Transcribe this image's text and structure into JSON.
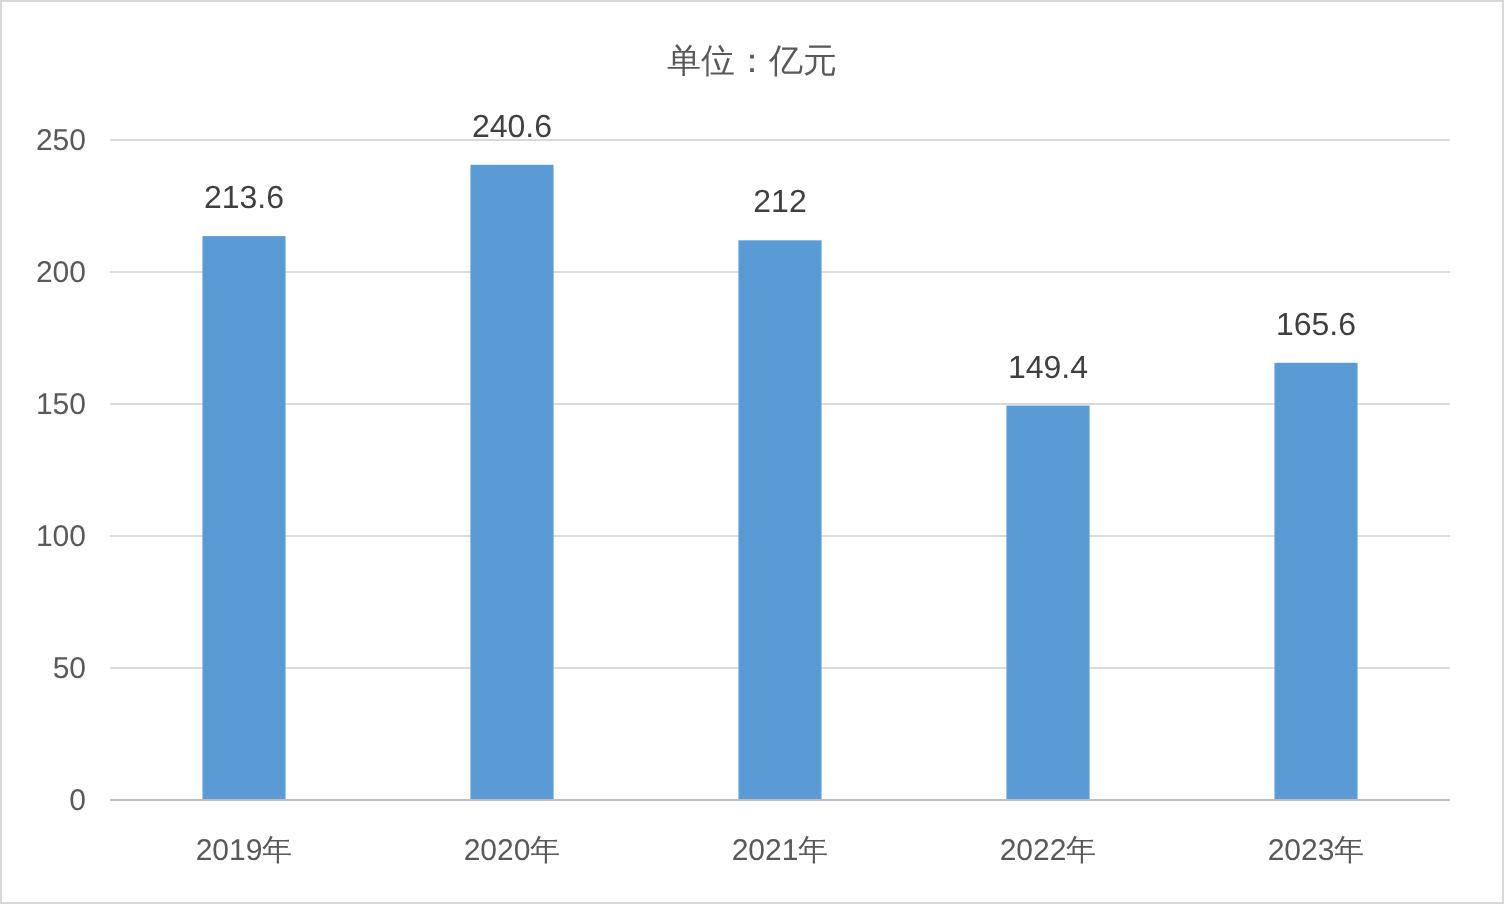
{
  "chart_data": {
    "type": "bar",
    "title": "单位：亿元",
    "categories": [
      "2019年",
      "2020年",
      "2021年",
      "2022年",
      "2023年"
    ],
    "values": [
      213.6,
      240.6,
      212,
      149.4,
      165.6
    ],
    "color": "#5b9bd5",
    "ylim": [
      0,
      250
    ],
    "yticks": [
      0,
      50,
      100,
      150,
      200,
      250
    ],
    "grid": "y",
    "data_labels": true
  }
}
